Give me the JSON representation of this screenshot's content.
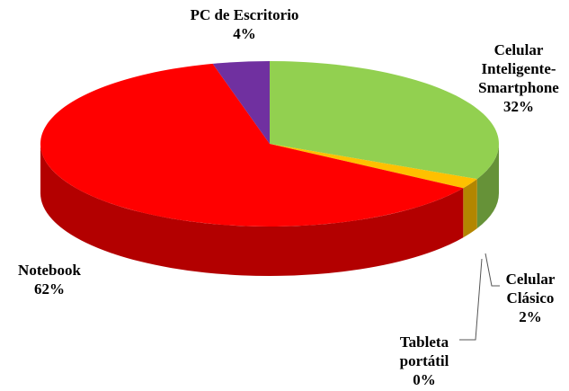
{
  "chart_data": {
    "type": "pie",
    "categories": [
      "Celular Inteligente-Smartphone",
      "Celular Clásico",
      "Tableta portátil",
      "Notebook",
      "PC de Escritorio"
    ],
    "values": [
      32,
      2,
      0,
      62,
      4
    ],
    "value_labels": [
      "32%",
      "2%",
      "0%",
      "62%",
      "4%"
    ],
    "colors": [
      "#92d050",
      "#ffc000",
      "#00b0f0",
      "#ff0000",
      "#7030a0"
    ]
  }
}
